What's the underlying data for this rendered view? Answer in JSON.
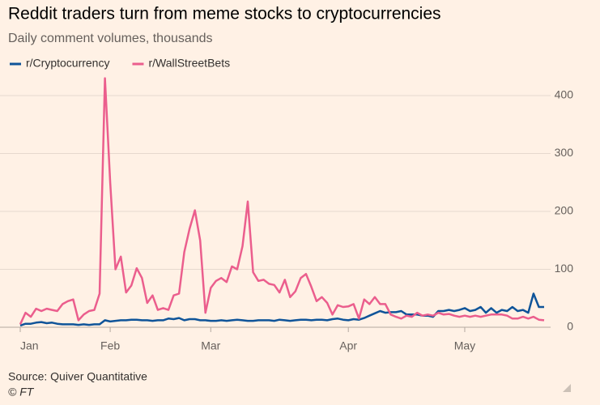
{
  "chart_data": {
    "type": "line",
    "title": "Reddit traders turn from meme stocks to cryptocurrencies",
    "subtitle": "Daily comment volumes, thousands",
    "source": "Source: Quiver Quantitative",
    "credit": "© FT",
    "categories": [
      "Jan",
      null,
      null,
      null,
      null,
      null,
      null,
      null,
      null,
      null,
      null,
      null,
      null,
      null,
      null,
      null,
      null,
      "Feb",
      null,
      null,
      null,
      null,
      null,
      null,
      null,
      null,
      null,
      null,
      null,
      null,
      null,
      null,
      null,
      null,
      null,
      null,
      "Mar",
      null,
      null,
      null,
      null,
      null,
      null,
      null,
      null,
      null,
      null,
      null,
      null,
      null,
      null,
      null,
      null,
      null,
      null,
      null,
      null,
      null,
      null,
      null,
      null,
      null,
      "Apr",
      null,
      null,
      null,
      null,
      null,
      null,
      null,
      null,
      null,
      null,
      null,
      null,
      null,
      null,
      null,
      null,
      null,
      null,
      null,
      null,
      null,
      "May",
      null,
      null,
      null,
      null,
      null,
      null,
      null,
      null,
      null,
      null,
      null,
      null,
      null,
      null,
      null
    ],
    "series": [
      {
        "name": "r/Cryptocurrency",
        "color": "#0f5499",
        "values": [
          3,
          6,
          6,
          8,
          9,
          7,
          8,
          6,
          5,
          5,
          5,
          4,
          5,
          4,
          5,
          5,
          12,
          10,
          11,
          12,
          12,
          13,
          13,
          12,
          12,
          11,
          12,
          12,
          15,
          14,
          16,
          12,
          14,
          14,
          12,
          12,
          11,
          11,
          12,
          11,
          12,
          13,
          12,
          11,
          11,
          12,
          12,
          12,
          11,
          13,
          12,
          11,
          12,
          13,
          13,
          12,
          13,
          13,
          12,
          14,
          15,
          13,
          12,
          14,
          13,
          16,
          20,
          24,
          28,
          25,
          26,
          26,
          28,
          22,
          22,
          22,
          20,
          20,
          18,
          28,
          28,
          30,
          28,
          30,
          33,
          28,
          30,
          35,
          25,
          33,
          25,
          30,
          28,
          35,
          28,
          30,
          25,
          58,
          35,
          35
        ]
      },
      {
        "name": "r/WallStreetBets",
        "color": "#eb5e8d",
        "values": [
          5,
          25,
          18,
          32,
          28,
          32,
          30,
          28,
          40,
          45,
          48,
          12,
          22,
          28,
          30,
          58,
          430,
          250,
          100,
          122,
          60,
          72,
          102,
          85,
          42,
          55,
          30,
          33,
          30,
          55,
          58,
          130,
          170,
          202,
          150,
          25,
          68,
          80,
          85,
          78,
          105,
          100,
          140,
          217,
          95,
          80,
          82,
          75,
          73,
          60,
          82,
          52,
          62,
          85,
          92,
          70,
          45,
          52,
          42,
          22,
          38,
          35,
          36,
          40,
          15,
          48,
          40,
          52,
          40,
          40,
          22,
          18,
          15,
          20,
          18,
          25,
          20,
          22,
          20,
          25,
          22,
          23,
          20,
          18,
          20,
          18,
          20,
          18,
          20,
          22,
          22,
          22,
          20,
          15,
          15,
          18,
          15,
          18,
          13,
          12
        ]
      }
    ],
    "ylim": [
      0,
      440
    ],
    "yticks": [
      0,
      100,
      200,
      300,
      400
    ],
    "grid": true
  }
}
